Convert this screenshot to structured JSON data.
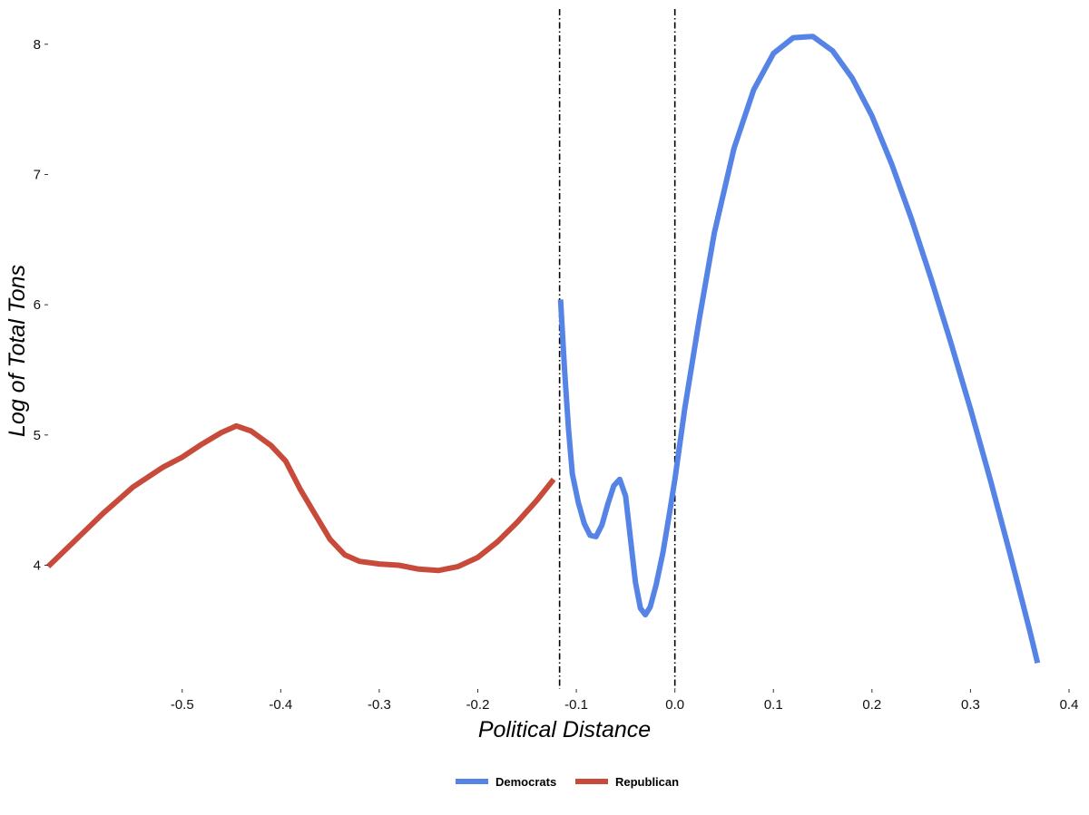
{
  "chart_data": {
    "type": "line",
    "title": "",
    "xlabel": "Political Distance",
    "ylabel": "Log of Total Tons",
    "xlim": [
      -0.637,
      0.4
    ],
    "ylim": [
      3.05,
      8.27
    ],
    "x_ticks": [
      -0.5,
      -0.4,
      -0.3,
      -0.2,
      -0.1,
      0.0,
      0.1,
      0.2,
      0.3,
      0.4
    ],
    "x_tick_labels": [
      "-0.5",
      "-0.4",
      "-0.3",
      "-0.2",
      "-0.1",
      "0.0",
      "0.1",
      "0.2",
      "0.3",
      "0.4"
    ],
    "y_ticks": [
      4,
      5,
      6,
      7,
      8
    ],
    "y_tick_labels": [
      "4",
      "5",
      "6",
      "7",
      "8"
    ],
    "grid": false,
    "legend_position": "bottom",
    "vlines": [
      {
        "x": -0.117,
        "style": "dot-dash"
      },
      {
        "x": 0.0,
        "style": "dot-dash"
      }
    ],
    "series": [
      {
        "name": "Democrats",
        "color": "#5584E6",
        "points": [
          [
            -0.116,
            6.04
          ],
          [
            -0.112,
            5.5
          ],
          [
            -0.108,
            5.05
          ],
          [
            -0.104,
            4.7
          ],
          [
            -0.098,
            4.48
          ],
          [
            -0.092,
            4.32
          ],
          [
            -0.086,
            4.23
          ],
          [
            -0.08,
            4.22
          ],
          [
            -0.074,
            4.31
          ],
          [
            -0.068,
            4.47
          ],
          [
            -0.062,
            4.61
          ],
          [
            -0.056,
            4.66
          ],
          [
            -0.05,
            4.53
          ],
          [
            -0.045,
            4.2
          ],
          [
            -0.04,
            3.87
          ],
          [
            -0.035,
            3.67
          ],
          [
            -0.03,
            3.62
          ],
          [
            -0.025,
            3.68
          ],
          [
            -0.019,
            3.85
          ],
          [
            -0.012,
            4.1
          ],
          [
            -0.005,
            4.42
          ],
          [
            0.0,
            4.66
          ],
          [
            0.01,
            5.2
          ],
          [
            0.025,
            5.9
          ],
          [
            0.04,
            6.55
          ],
          [
            0.06,
            7.2
          ],
          [
            0.08,
            7.65
          ],
          [
            0.1,
            7.93
          ],
          [
            0.12,
            8.05
          ],
          [
            0.14,
            8.06
          ],
          [
            0.16,
            7.95
          ],
          [
            0.18,
            7.74
          ],
          [
            0.2,
            7.45
          ],
          [
            0.22,
            7.08
          ],
          [
            0.24,
            6.66
          ],
          [
            0.26,
            6.2
          ],
          [
            0.28,
            5.71
          ],
          [
            0.3,
            5.2
          ],
          [
            0.32,
            4.66
          ],
          [
            0.34,
            4.09
          ],
          [
            0.36,
            3.5
          ],
          [
            0.368,
            3.25
          ]
        ]
      },
      {
        "name": "Republican",
        "color": "#C84A3B",
        "points": [
          [
            -0.636,
            3.99
          ],
          [
            -0.61,
            4.18
          ],
          [
            -0.58,
            4.4
          ],
          [
            -0.55,
            4.6
          ],
          [
            -0.52,
            4.75
          ],
          [
            -0.5,
            4.83
          ],
          [
            -0.48,
            4.93
          ],
          [
            -0.46,
            5.02
          ],
          [
            -0.445,
            5.07
          ],
          [
            -0.43,
            5.03
          ],
          [
            -0.41,
            4.92
          ],
          [
            -0.395,
            4.8
          ],
          [
            -0.38,
            4.58
          ],
          [
            -0.365,
            4.39
          ],
          [
            -0.35,
            4.2
          ],
          [
            -0.335,
            4.08
          ],
          [
            -0.32,
            4.03
          ],
          [
            -0.3,
            4.01
          ],
          [
            -0.28,
            4.0
          ],
          [
            -0.26,
            3.97
          ],
          [
            -0.24,
            3.96
          ],
          [
            -0.22,
            3.99
          ],
          [
            -0.2,
            4.06
          ],
          [
            -0.18,
            4.18
          ],
          [
            -0.16,
            4.33
          ],
          [
            -0.14,
            4.5
          ],
          [
            -0.123,
            4.66
          ]
        ]
      }
    ]
  }
}
